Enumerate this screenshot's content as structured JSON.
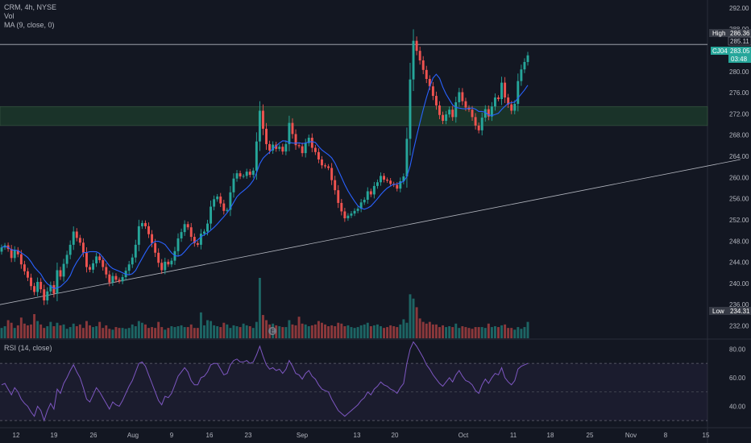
{
  "legend": {
    "symbol": "CRM, 4h, NYSE",
    "vol": "Vol",
    "ma": "MA (9, close, 0)",
    "rsi": "RSI (14, close)"
  },
  "badges": {
    "high_label": "High",
    "high_value": "286.36",
    "crosshair_value": "285.11",
    "last_ticker": "CJ04",
    "last_value": "283.05",
    "countdown": "03:48",
    "low_label": "Low",
    "low_value": "234.31",
    "earnings_marker": "E"
  },
  "colors": {
    "background": "#131722",
    "up": "#26a69a",
    "down": "#ef5350",
    "ma": "#2962ff",
    "rsi": "#7e57c2",
    "zone": "#1e3d2c"
  },
  "chart_data": {
    "type": "candlestick",
    "price_axis": {
      "ticks": [
        "292.00",
        "288.00",
        "284.00",
        "280.00",
        "276.00",
        "272.00",
        "268.00",
        "264.00",
        "260.00",
        "256.00",
        "252.00",
        "248.00",
        "244.00",
        "240.00",
        "236.00",
        "232.00"
      ],
      "ylim": [
        229.5,
        293.5
      ]
    },
    "rsi_axis": {
      "ticks": [
        "80.00",
        "60.00",
        "40.00"
      ],
      "ylim": [
        25,
        87
      ],
      "bands": [
        70,
        50,
        30
      ]
    },
    "x_axis": {
      "ticks": [
        {
          "label": "12",
          "date": "2021-07-12"
        },
        {
          "label": "19",
          "date": "2021-07-19"
        },
        {
          "label": "26",
          "date": "2021-07-26"
        },
        {
          "label": "Aug",
          "date": "2021-08-02"
        },
        {
          "label": "9",
          "date": "2021-08-09"
        },
        {
          "label": "16",
          "date": "2021-08-16"
        },
        {
          "label": "23",
          "date": "2021-08-23"
        },
        {
          "label": "Sep",
          "date": "2021-09-01"
        },
        {
          "label": "13",
          "date": "2021-09-13"
        },
        {
          "label": "20",
          "date": "2021-09-20"
        },
        {
          "label": "Oct",
          "date": "2021-10-01"
        },
        {
          "label": "11",
          "date": "2021-10-11"
        },
        {
          "label": "18",
          "date": "2021-10-18"
        },
        {
          "label": "25",
          "date": "2021-10-25"
        },
        {
          "label": "Nov",
          "date": "2021-11-01"
        },
        {
          "label": "8",
          "date": "2021-11-08"
        },
        {
          "label": "15",
          "date": "2021-11-15"
        }
      ]
    },
    "resistance_zone": [
      269.8,
      273.4
    ],
    "high_line": 285.11,
    "trendline": [
      {
        "date": "2021-07-06",
        "price": 235.4
      },
      {
        "date": "2021-11-21",
        "price": 263.4
      }
    ],
    "close": [
      246.8,
      247.2,
      246.5,
      244.8,
      246.3,
      245.5,
      243.6,
      242.3,
      241.1,
      239.5,
      238.4,
      240.3,
      238.9,
      236.8,
      238.5,
      239.7,
      238.1,
      242.5,
      241.3,
      243.7,
      245.4,
      247.3,
      249.8,
      248.6,
      247.7,
      245.8,
      243.1,
      242.6,
      243.8,
      245.1,
      244.4,
      243.1,
      241.7,
      240.2,
      241.4,
      240.7,
      240.4,
      241.2,
      242.4,
      243.6,
      244.9,
      247.3,
      250.8,
      251.4,
      250.8,
      249.3,
      247.6,
      245.8,
      243.9,
      242.5,
      244.1,
      243.6,
      244.3,
      246.1,
      248.5,
      249.7,
      251.2,
      250.6,
      248.8,
      247.6,
      247.3,
      249.4,
      249.8,
      251.3,
      254.5,
      255.9,
      256.4,
      255.1,
      253.7,
      253.9,
      257.2,
      259.8,
      260.8,
      260.2,
      260.3,
      261.1,
      260.5,
      261.3,
      266.8,
      272.6,
      269.2,
      266.3,
      265.1,
      266.2,
      265.4,
      265.8,
      264.9,
      266.3,
      270.3,
      268.2,
      266.1,
      265.9,
      264.6,
      266.5,
      267.5,
      265.6,
      264.8,
      263.4,
      262.3,
      262.1,
      261.8,
      259.5,
      257.6,
      255.2,
      253.6,
      252.3,
      252.8,
      253.2,
      253.7,
      254.1,
      255.3,
      255.8,
      257.4,
      256.8,
      258.4,
      259.1,
      260.3,
      259.6,
      259.4,
      258.8,
      258.6,
      257.9,
      259.3,
      260.2,
      267.3,
      278.5,
      285.8,
      283.9,
      282.1,
      280.3,
      278.6,
      277.2,
      275.4,
      273.6,
      271.8,
      270.7,
      271.9,
      272.8,
      271.4,
      274.2,
      276.1,
      274.4,
      273.2,
      272.8,
      271.4,
      269.8,
      268.9,
      271.3,
      272.9,
      271.5,
      273.4,
      275.1,
      274.8,
      277.9,
      275.1,
      273.8,
      272.6,
      273.9,
      278.2,
      280.4,
      281.8,
      283.05
    ],
    "volume": [
      1.2,
      1.4,
      2.1,
      1.8,
      1.2,
      1.5,
      2.4,
      1.7,
      1.5,
      1.6,
      2.8,
      2.0,
      1.6,
      1.2,
      1.4,
      1.9,
      1.4,
      1.8,
      1.5,
      1.6,
      1.1,
      1.3,
      1.7,
      1.4,
      1.6,
      1.2,
      2.0,
      1.5,
      1.3,
      1.4,
      1.9,
      1.2,
      1.5,
      1.1,
      1.0,
      1.3,
      1.2,
      1.2,
      1.1,
      1.2,
      1.6,
      1.4,
      2.0,
      1.8,
      1.6,
      1.2,
      1.3,
      1.2,
      1.9,
      1.3,
      1.0,
      1.2,
      1.4,
      1.3,
      1.4,
      1.5,
      1.3,
      1.3,
      1.6,
      1.2,
      1.2,
      3.0,
      1.5,
      2.1,
      2.0,
      1.5,
      1.4,
      1.3,
      1.8,
      1.6,
      1.2,
      1.5,
      1.4,
      1.3,
      1.7,
      1.5,
      1.4,
      1.2,
      1.9,
      7.0,
      2.7,
      2.1,
      1.6,
      1.7,
      1.5,
      1.4,
      1.3,
      1.3,
      2.1,
      1.6,
      1.5,
      2.5,
      1.7,
      1.6,
      1.4,
      1.5,
      1.6,
      2.0,
      1.8,
      1.6,
      1.4,
      1.5,
      1.4,
      1.8,
      1.7,
      1.4,
      1.5,
      1.3,
      1.2,
      1.3,
      1.5,
      1.6,
      1.8,
      1.4,
      1.5,
      1.6,
      1.4,
      1.2,
      1.3,
      1.5,
      1.4,
      1.3,
      1.6,
      2.2,
      1.8,
      5.1,
      4.6,
      3.6,
      2.3,
      1.9,
      1.7,
      1.9,
      1.6,
      1.6,
      1.3,
      1.5,
      1.3,
      1.4,
      1.3,
      1.7,
      1.2,
      1.4,
      1.3,
      1.2,
      1.1,
      1.3,
      1.3,
      1.3,
      1.2,
      1.7,
      1.3,
      1.4,
      1.3,
      1.5,
      1.6,
      1.2,
      1.2,
      1.0,
      1.3,
      1.1,
      1.3,
      1.9
    ],
    "rsi": [
      55,
      56,
      52,
      48,
      53,
      50,
      45,
      42,
      40,
      36,
      33,
      40,
      37,
      30,
      37,
      42,
      38,
      52,
      49,
      56,
      60,
      65,
      69,
      64,
      60,
      53,
      45,
      43,
      48,
      53,
      50,
      46,
      42,
      38,
      43,
      41,
      40,
      44,
      49,
      54,
      58,
      64,
      70,
      71,
      68,
      62,
      56,
      50,
      44,
      41,
      47,
      46,
      49,
      55,
      61,
      64,
      67,
      64,
      58,
      55,
      55,
      60,
      61,
      64,
      69,
      70,
      70,
      66,
      62,
      63,
      69,
      72,
      73,
      71,
      71,
      72,
      70,
      71,
      76,
      82,
      75,
      69,
      66,
      67,
      65,
      66,
      63,
      66,
      72,
      68,
      63,
      62,
      59,
      63,
      65,
      61,
      59,
      55,
      52,
      51,
      50,
      45,
      41,
      37,
      35,
      33,
      35,
      37,
      39,
      41,
      44,
      46,
      50,
      48,
      52,
      54,
      57,
      55,
      54,
      52,
      51,
      49,
      53,
      56,
      70,
      80,
      85,
      82,
      78,
      74,
      69,
      66,
      62,
      59,
      56,
      54,
      57,
      60,
      57,
      62,
      65,
      61,
      58,
      57,
      55,
      51,
      49,
      55,
      59,
      56,
      60,
      63,
      62,
      67,
      60,
      57,
      55,
      58,
      66,
      68,
      69,
      70
    ]
  }
}
